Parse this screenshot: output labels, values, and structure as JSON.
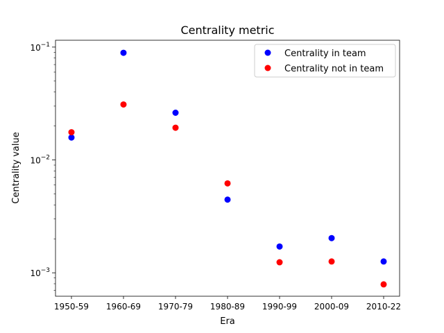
{
  "chart_data": {
    "type": "scatter",
    "title": "Centrality metric",
    "xlabel": "Era",
    "ylabel": "Centrality value",
    "yscale": "log",
    "ylim": [
      0.00062,
      0.115
    ],
    "categories": [
      "1950-59",
      "1960-69",
      "1970-79",
      "1980-89",
      "1990-99",
      "2000-09",
      "2010-22"
    ],
    "ytick_labels": [
      {
        "value": 0.001,
        "base": "10",
        "exp": "−3"
      },
      {
        "value": 0.01,
        "base": "10",
        "exp": "−2"
      },
      {
        "value": 0.1,
        "base": "10",
        "exp": "−1"
      }
    ],
    "series": [
      {
        "name": "Centrality in team",
        "color": "#0000ff",
        "values": [
          0.0158,
          0.089,
          0.0262,
          0.00445,
          0.00171,
          0.00203,
          0.00126
        ]
      },
      {
        "name": "Centrality not in team",
        "color": "#ff0000",
        "values": [
          0.0176,
          0.031,
          0.0193,
          0.0062,
          0.00124,
          0.00126,
          0.00079
        ]
      }
    ],
    "legend": "top-right",
    "grid": false
  }
}
